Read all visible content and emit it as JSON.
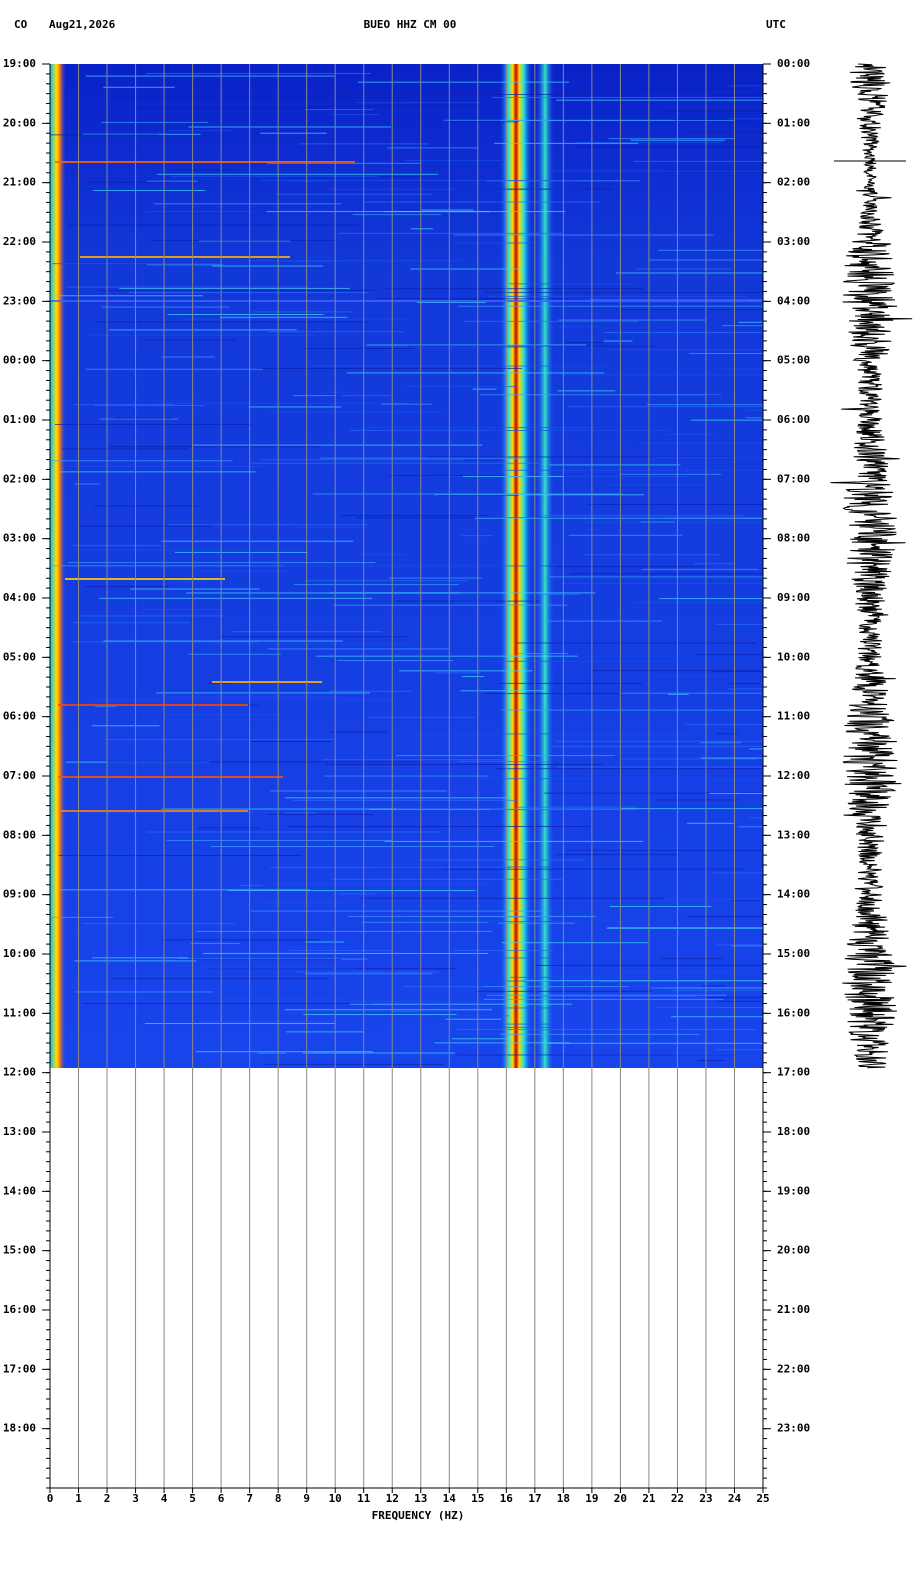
{
  "chart_data": {
    "type": "spectrogram",
    "network": "CO",
    "date": "Aug21,2026",
    "title": "BUEO HHZ CM 00",
    "timezone": "UTC",
    "xlabel": "FREQUENCY (HZ)",
    "xlim": [
      0,
      25
    ],
    "xticks": [
      0,
      1,
      2,
      3,
      4,
      5,
      6,
      7,
      8,
      9,
      10,
      11,
      12,
      13,
      14,
      15,
      16,
      17,
      18,
      19,
      20,
      21,
      22,
      23,
      24,
      25
    ],
    "ylim": [
      0,
      24
    ],
    "yticks": [
      {
        "value": 0,
        "label": "19:00"
      },
      {
        "value": 1,
        "label": "20:00"
      },
      {
        "value": 2,
        "label": "21:00"
      },
      {
        "value": 3,
        "label": "22:00"
      },
      {
        "value": 4,
        "label": "23:00"
      },
      {
        "value": 5,
        "label": "00:00"
      },
      {
        "value": 6,
        "label": "01:00"
      },
      {
        "value": 7,
        "label": "02:00"
      },
      {
        "value": 8,
        "label": "03:00"
      },
      {
        "value": 9,
        "label": "04:00"
      },
      {
        "value": 10,
        "label": "05:00"
      },
      {
        "value": 11,
        "label": "06:00"
      },
      {
        "value": 12,
        "label": "07:00"
      },
      {
        "value": 13,
        "label": "08:00"
      },
      {
        "value": 14,
        "label": "09:00"
      },
      {
        "value": 15,
        "label": "10:00"
      },
      {
        "value": 16,
        "label": "11:00"
      },
      {
        "value": 17,
        "label": "12:00"
      },
      {
        "value": 18,
        "label": "13:00"
      },
      {
        "value": 19,
        "label": "14:00"
      },
      {
        "value": 20,
        "label": "15:00"
      },
      {
        "value": 21,
        "label": "16:00"
      },
      {
        "value": 22,
        "label": "17:00"
      },
      {
        "value": 23,
        "label": "18:00"
      }
    ],
    "y2lim": [
      0,
      24
    ],
    "y2ticks": [
      {
        "value": 0,
        "label": "00:00"
      },
      {
        "value": 1,
        "label": "01:00"
      },
      {
        "value": 2,
        "label": "02:00"
      },
      {
        "value": 3,
        "label": "03:00"
      },
      {
        "value": 4,
        "label": "04:00"
      },
      {
        "value": 5,
        "label": "05:00"
      },
      {
        "value": 6,
        "label": "06:00"
      },
      {
        "value": 7,
        "label": "07:00"
      },
      {
        "value": 8,
        "label": "08:00"
      },
      {
        "value": 9,
        "label": "09:00"
      },
      {
        "value": 10,
        "label": "10:00"
      },
      {
        "value": 11,
        "label": "11:00"
      },
      {
        "value": 12,
        "label": "12:00"
      },
      {
        "value": 13,
        "label": "13:00"
      },
      {
        "value": 14,
        "label": "14:00"
      },
      {
        "value": 15,
        "label": "15:00"
      },
      {
        "value": 16,
        "label": "16:00"
      },
      {
        "value": 17,
        "label": "17:00"
      },
      {
        "value": 18,
        "label": "18:00"
      },
      {
        "value": 19,
        "label": "19:00"
      },
      {
        "value": 20,
        "label": "20:00"
      },
      {
        "value": 21,
        "label": "21:00"
      },
      {
        "value": 22,
        "label": "22:00"
      },
      {
        "value": 23,
        "label": "23:00"
      }
    ],
    "grid": true
  }
}
